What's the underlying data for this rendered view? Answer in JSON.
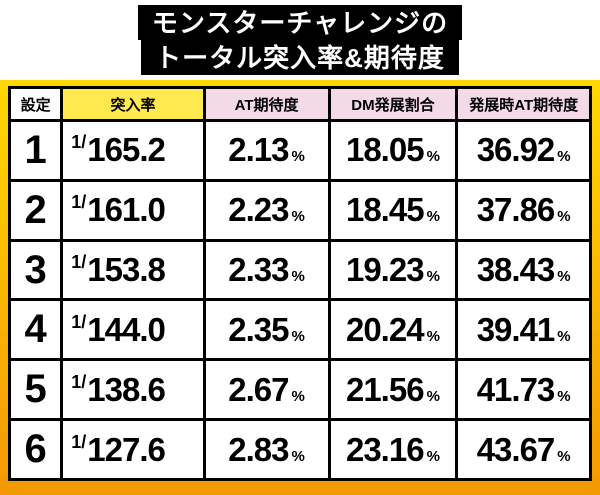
{
  "title": {
    "line1": "モンスターチャレンジの",
    "line2": "トータル突入率&期待度"
  },
  "table": {
    "headers": [
      "設定",
      "突入率",
      "AT期待度",
      "DM発展割合",
      "発展時AT期待度"
    ],
    "rate_prefix": "1/",
    "unit": "%",
    "rows": [
      {
        "setting": "1",
        "rate": "165.2",
        "at_rate": "2.13",
        "dm_rate": "18.05",
        "dev_at_rate": "36.92"
      },
      {
        "setting": "2",
        "rate": "161.0",
        "at_rate": "2.23",
        "dm_rate": "18.45",
        "dev_at_rate": "37.86"
      },
      {
        "setting": "3",
        "rate": "153.8",
        "at_rate": "2.33",
        "dm_rate": "19.23",
        "dev_at_rate": "38.43"
      },
      {
        "setting": "4",
        "rate": "144.0",
        "at_rate": "2.35",
        "dm_rate": "20.24",
        "dev_at_rate": "39.41"
      },
      {
        "setting": "5",
        "rate": "138.6",
        "at_rate": "2.67",
        "dm_rate": "21.56",
        "dev_at_rate": "41.73"
      },
      {
        "setting": "6",
        "rate": "127.6",
        "at_rate": "2.83",
        "dm_rate": "23.16",
        "dev_at_rate": "43.67"
      }
    ]
  },
  "colors": {
    "title-bg": "#000000",
    "title-text": "#ffffff",
    "frame-top": "#ffd800",
    "frame-bottom": "#f39800",
    "rate-header-bg": "#ffe94f",
    "pink-header-bg": "#f4d9e7",
    "border": "#000000"
  },
  "chart_data": {
    "type": "table",
    "title": "モンスターチャレンジのトータル突入率&期待度",
    "columns": [
      "設定",
      "突入率",
      "AT期待度",
      "DM発展割合",
      "発展時AT期待度"
    ],
    "rows": [
      [
        "1",
        "1/165.2",
        "2.13%",
        "18.05%",
        "36.92%"
      ],
      [
        "2",
        "1/161.0",
        "2.23%",
        "18.45%",
        "37.86%"
      ],
      [
        "3",
        "1/153.8",
        "2.33%",
        "19.23%",
        "38.43%"
      ],
      [
        "4",
        "1/144.0",
        "2.35%",
        "20.24%",
        "39.41%"
      ],
      [
        "5",
        "1/138.6",
        "2.67%",
        "21.56%",
        "41.73%"
      ],
      [
        "6",
        "1/127.6",
        "2.83%",
        "23.16%",
        "43.67%"
      ]
    ]
  }
}
